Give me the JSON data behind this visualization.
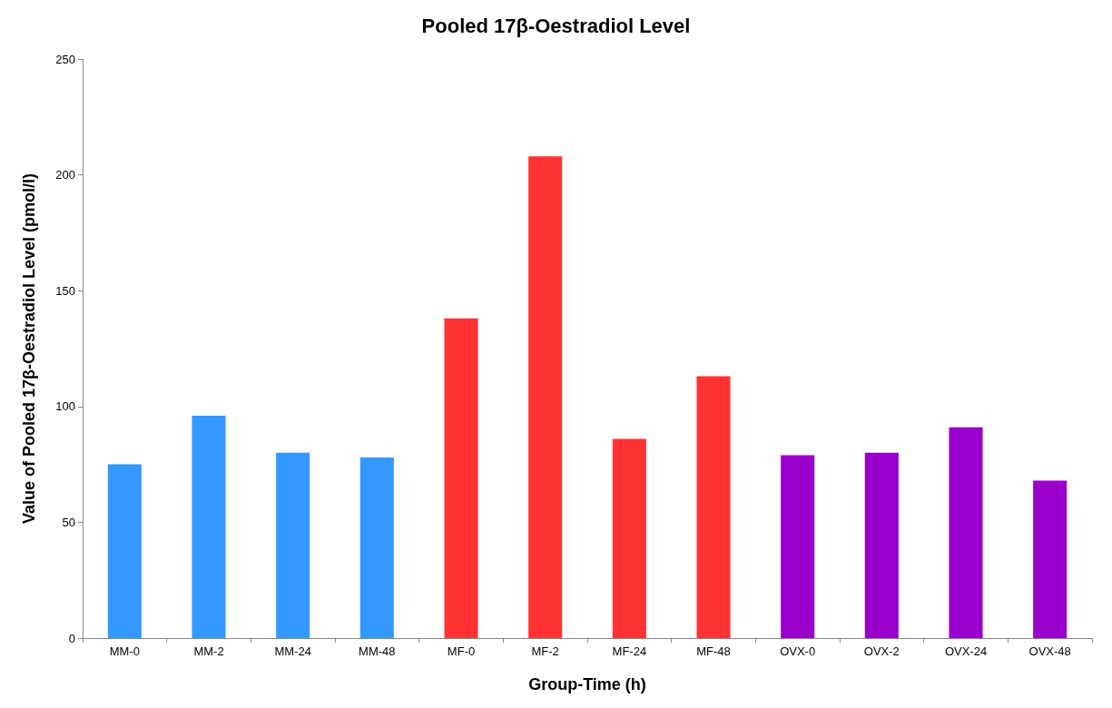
{
  "chart_data": {
    "type": "bar",
    "title": "Pooled 17β-Oestradiol Level",
    "xlabel": "Group-Time (h)",
    "ylabel": "Value of Pooled 17β-Oestradiol Level (pmol/l)",
    "categories": [
      "MM-0",
      "MM-2",
      "MM-24",
      "MM-48",
      "MF-0",
      "MF-2",
      "MF-24",
      "MF-48",
      "OVX-0",
      "OVX-2",
      "OVX-24",
      "OVX-48"
    ],
    "values": [
      75,
      96,
      80,
      78,
      138,
      208,
      86,
      113,
      79,
      80,
      91,
      68
    ],
    "colors": [
      "#3399ff",
      "#3399ff",
      "#3399ff",
      "#3399ff",
      "#ff3333",
      "#ff3333",
      "#ff3333",
      "#ff3333",
      "#9900cc",
      "#9900cc",
      "#9900cc",
      "#9900cc"
    ],
    "ylim": [
      0,
      250
    ],
    "yticks": [
      0,
      50,
      100,
      150,
      200,
      250
    ],
    "grid": false
  }
}
